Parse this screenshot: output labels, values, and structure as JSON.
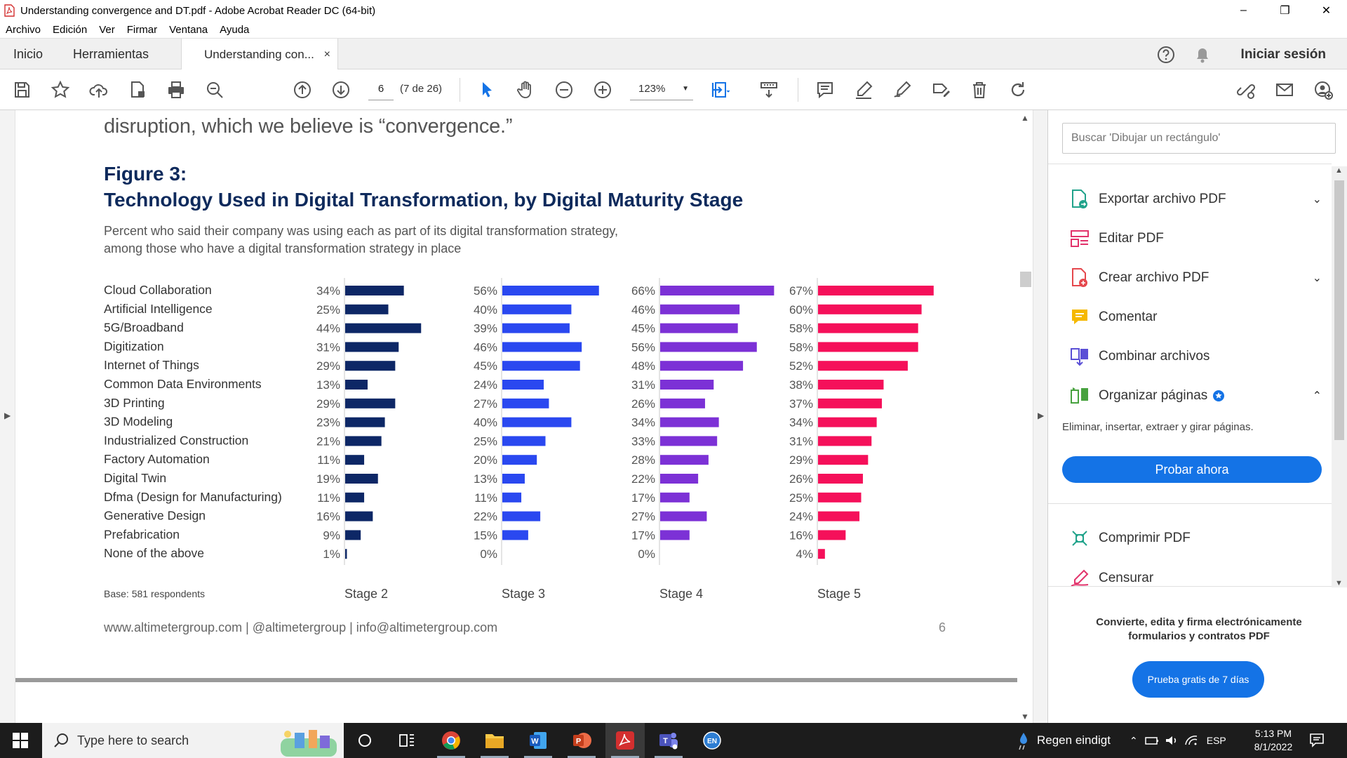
{
  "window": {
    "title": "Understanding convergence and DT.pdf - Adobe Acrobat Reader DC (64-bit)",
    "minimize": "–",
    "restore": "❐",
    "close": "✕"
  },
  "menu": [
    "Archivo",
    "Edición",
    "Ver",
    "Firmar",
    "Ventana",
    "Ayuda"
  ],
  "tabs": {
    "home": "Inicio",
    "tools": "Herramientas",
    "document": "Understanding con...",
    "close": "×",
    "signin": "Iniciar sesión"
  },
  "toolbar": {
    "page_value": "6",
    "page_count": "(7 de 26)",
    "zoom": "123%",
    "zoom_caret": "▼"
  },
  "document": {
    "top_line": "disruption, which we believe is “convergence.”",
    "figure_label": "Figure 3:",
    "figure_title": "Technology Used in Digital Transformation, by Digital Maturity Stage",
    "subtitle_line1": "Percent who said their company was using each as part of its digital transformation strategy,",
    "subtitle_line2": "among those who have a digital transformation strategy in place",
    "base_note": "Base: 581 respondents",
    "footer_links": "www.altimetergroup.com | @altimetergroup | info@altimetergroup.com",
    "page_number": "6"
  },
  "chart_data": {
    "type": "bar",
    "orientation": "horizontal",
    "categories": [
      "Cloud Collaboration",
      "Artificial Intelligence",
      "5G/Broadband",
      "Digitization",
      "Internet of Things",
      "Common Data Environments",
      "3D Printing",
      "3D Modeling",
      "Industrialized Construction",
      "Factory Automation",
      "Digital Twin",
      "Dfma (Design for Manufacturing)",
      "Generative Design",
      "Prefabrication",
      "None of the above"
    ],
    "series": [
      {
        "name": "Stage 2",
        "color": "#0d2766",
        "values": [
          34,
          25,
          44,
          31,
          29,
          13,
          29,
          23,
          21,
          11,
          19,
          11,
          16,
          9,
          1
        ]
      },
      {
        "name": "Stage 3",
        "color": "#2a48f0",
        "values": [
          56,
          40,
          39,
          46,
          45,
          24,
          27,
          40,
          25,
          20,
          13,
          11,
          22,
          15,
          0
        ]
      },
      {
        "name": "Stage 4",
        "color": "#7c31d6",
        "values": [
          66,
          46,
          45,
          56,
          48,
          31,
          26,
          34,
          33,
          28,
          22,
          17,
          27,
          17,
          0
        ]
      },
      {
        "name": "Stage 5",
        "color": "#f5105a",
        "values": [
          67,
          60,
          58,
          58,
          52,
          38,
          37,
          34,
          31,
          29,
          26,
          25,
          24,
          16,
          4
        ]
      }
    ],
    "unit": "%"
  },
  "panel": {
    "search_placeholder": "Buscar 'Dibujar un rectángulo'",
    "items": [
      {
        "label": "Exportar archivo PDF",
        "chevron": "⌄"
      },
      {
        "label": "Editar PDF"
      },
      {
        "label": "Crear archivo PDF",
        "chevron": "⌄"
      },
      {
        "label": "Comentar"
      },
      {
        "label": "Combinar archivos"
      },
      {
        "label": "Organizar páginas",
        "chevron": "⌃"
      },
      {
        "label": "Comprimir PDF"
      },
      {
        "label": "Censurar"
      }
    ],
    "organize_desc": "Eliminar, insertar, extraer y girar páginas.",
    "try_now": "Probar ahora",
    "promo_line1": "Convierte, edita y firma electrónicamente",
    "promo_line2": "formularios y contratos PDF",
    "trial_button": "Prueba gratis de 7 días"
  },
  "taskbar": {
    "search_placeholder": "Type here to search",
    "weather": "Regen eindigt",
    "language": "ESP",
    "time": "5:13 PM",
    "date": "8/1/2022",
    "lang_badge": "EN"
  }
}
